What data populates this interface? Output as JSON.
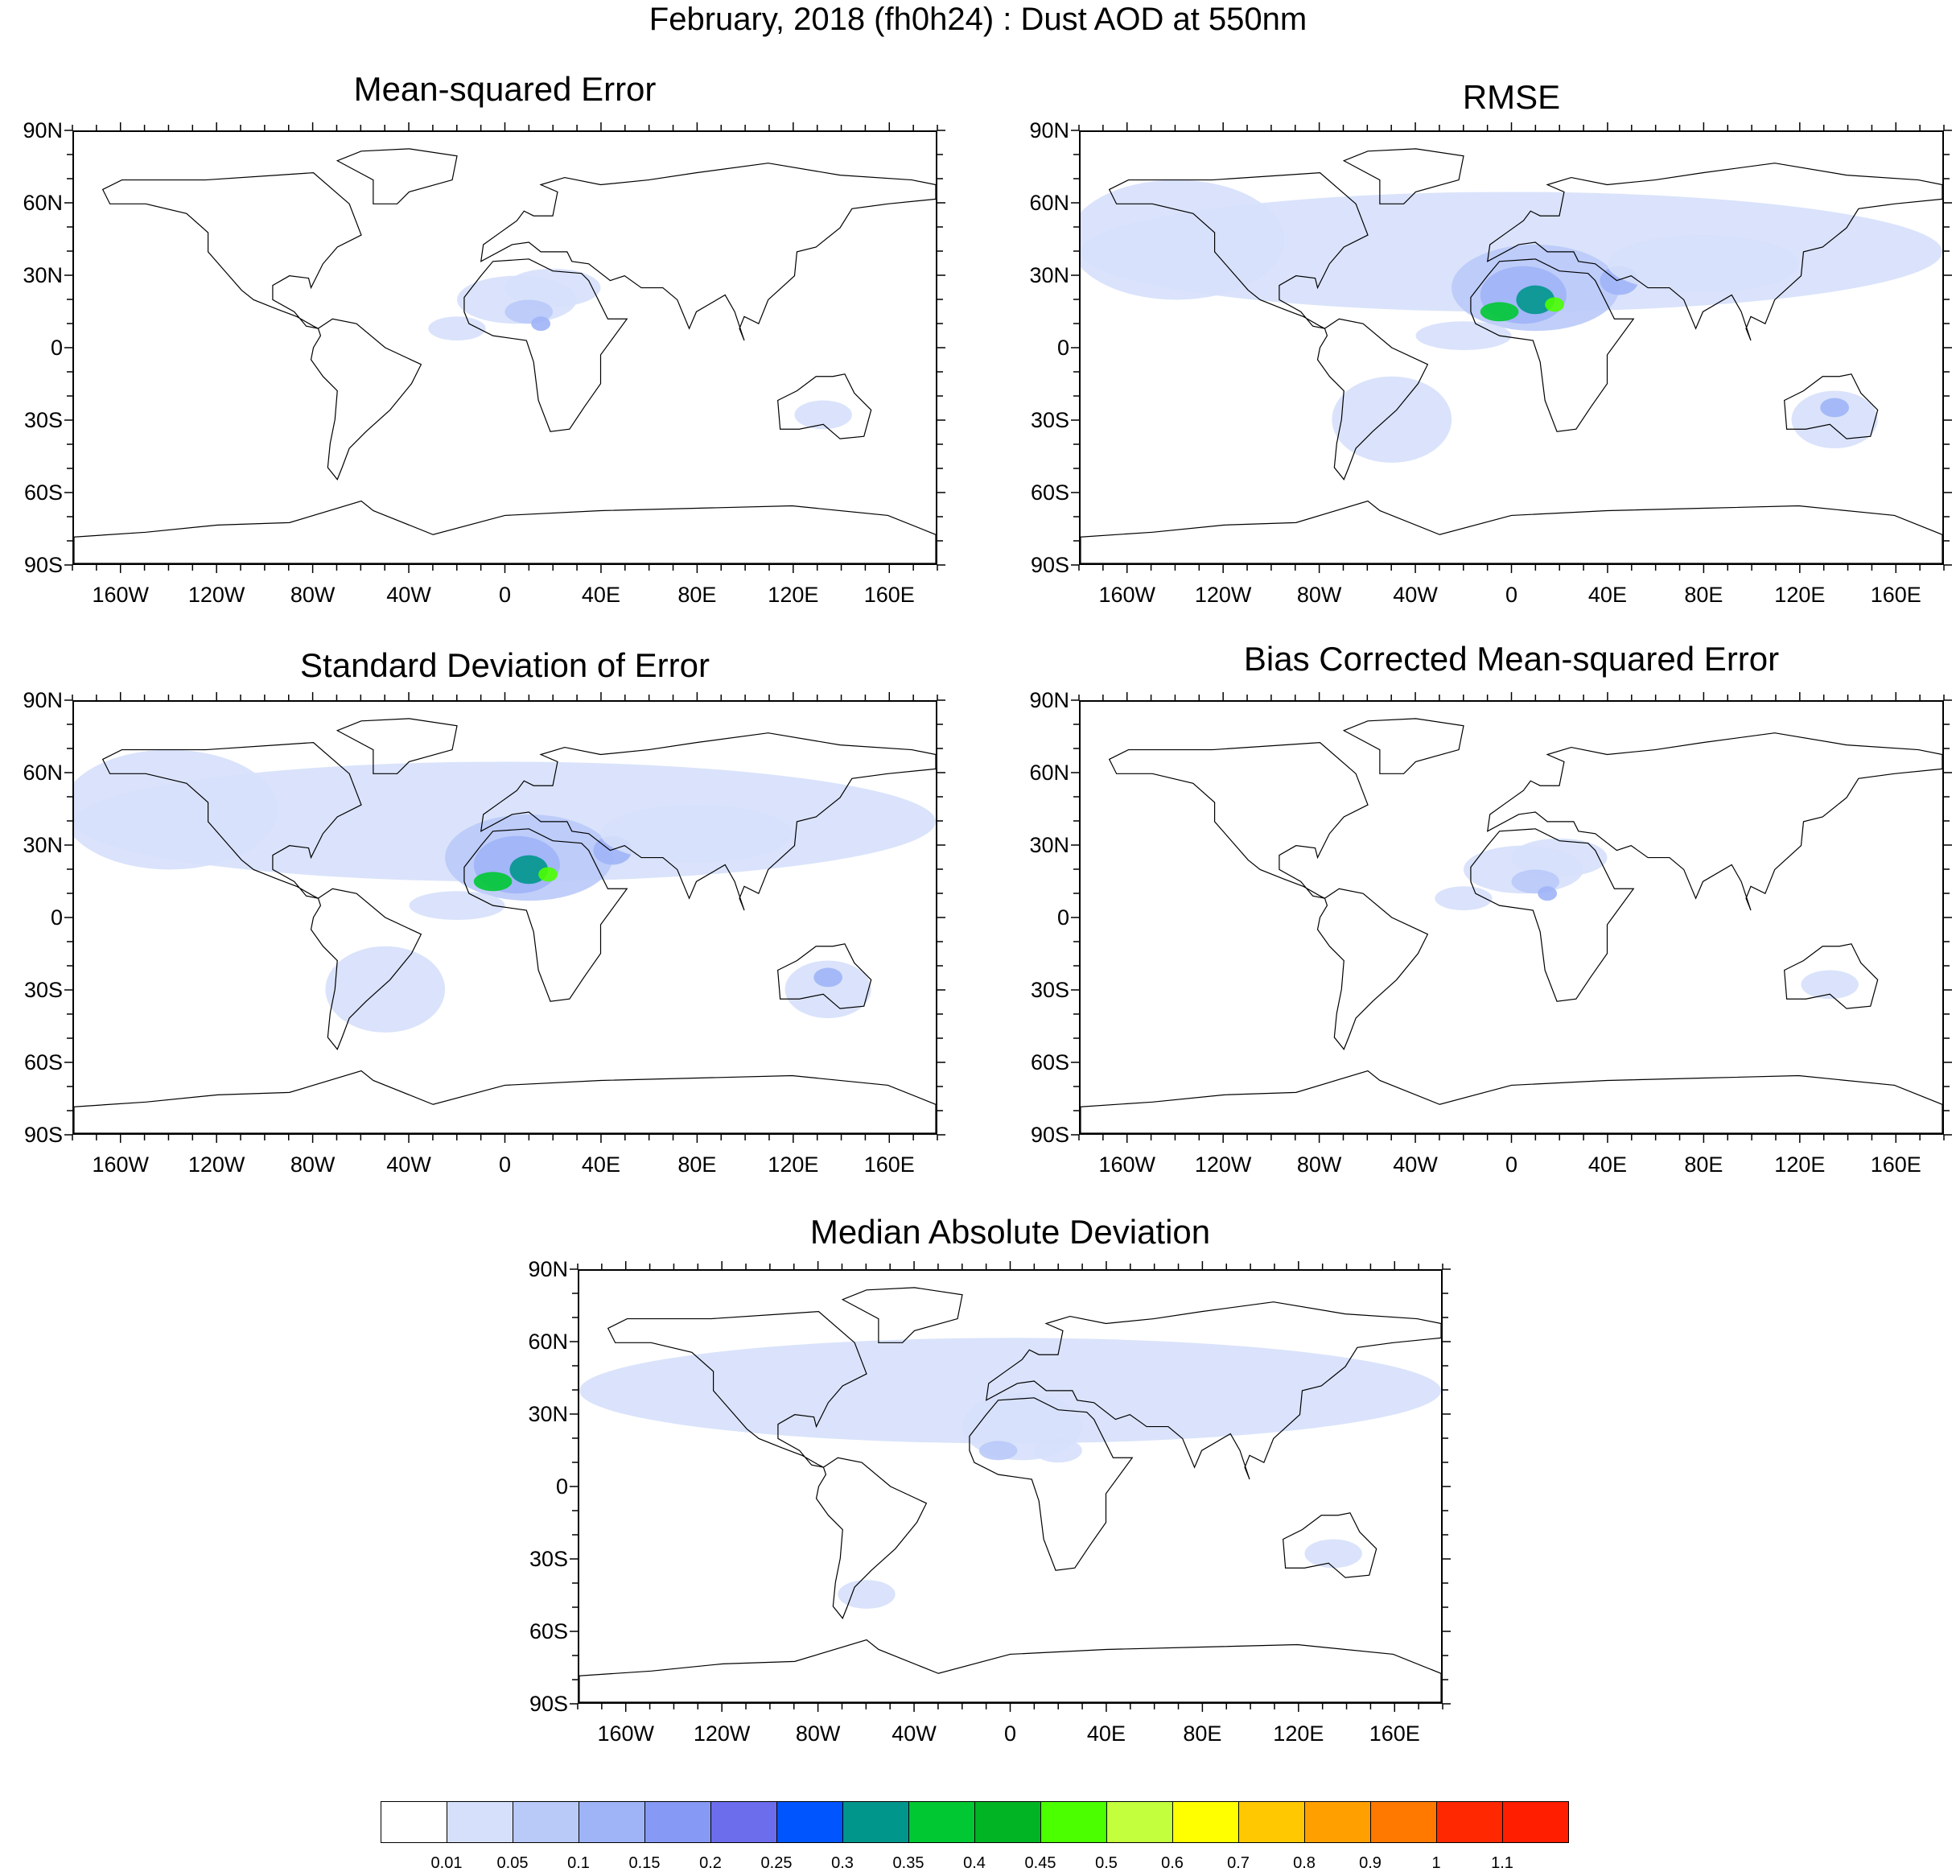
{
  "title": "February, 2018 (fh0h24) : Dust AOD at 550nm",
  "lat_labels": [
    "90N",
    "60N",
    "30N",
    "0",
    "30S",
    "60S",
    "90S"
  ],
  "lon_labels": [
    "160W",
    "120W",
    "80W",
    "40W",
    "0",
    "40E",
    "80E",
    "120E",
    "160E"
  ],
  "panels": [
    {
      "name": "mse",
      "title": "Mean-squared Error",
      "intensity": "low"
    },
    {
      "name": "rmse",
      "title": "RMSE",
      "intensity": "high"
    },
    {
      "name": "std",
      "title": "Standard Deviation of Error",
      "intensity": "high"
    },
    {
      "name": "bcmse",
      "title": "Bias Corrected Mean-squared Error",
      "intensity": "low"
    },
    {
      "name": "mad",
      "title": "Median Absolute Deviation",
      "intensity": "medium"
    }
  ],
  "colorbar": {
    "labels": [
      "0.01",
      "0.05",
      "0.1",
      "0.15",
      "0.2",
      "0.25",
      "0.3",
      "0.35",
      "0.4",
      "0.45",
      "0.5",
      "0.6",
      "0.7",
      "0.8",
      "0.9",
      "1",
      "1.1"
    ],
    "colors": [
      "#ffffff",
      "#d6e0fb",
      "#b9c9f8",
      "#9fb4f7",
      "#8699f4",
      "#6c6ded",
      "#0055ff",
      "#00968c",
      "#00c832",
      "#00b423",
      "#4bff00",
      "#c3ff3c",
      "#ffff00",
      "#ffc800",
      "#ffa000",
      "#ff7800",
      "#ff2800"
    ]
  }
}
